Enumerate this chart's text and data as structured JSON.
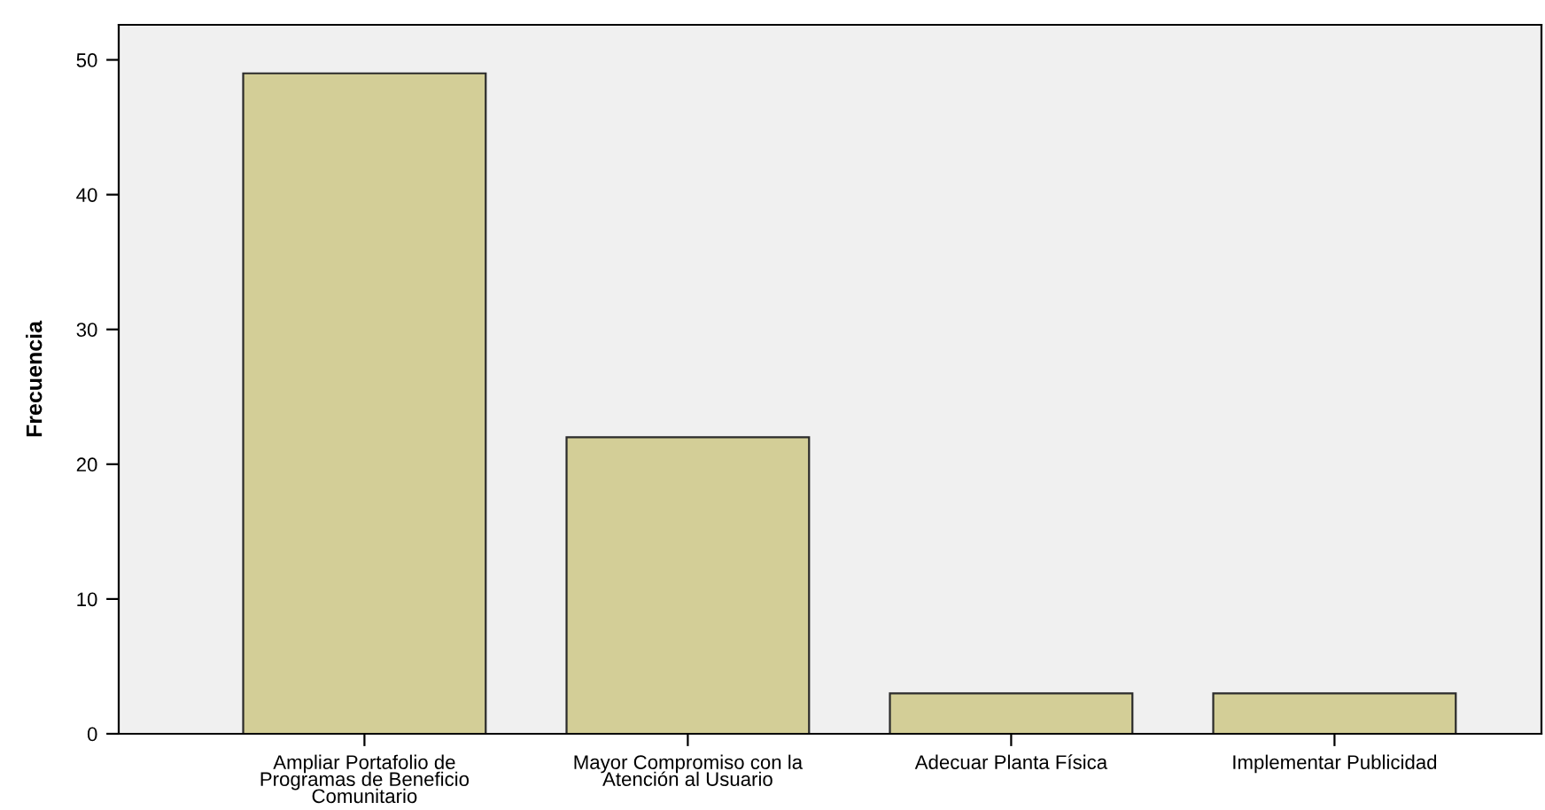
{
  "chart_data": {
    "type": "bar",
    "ylabel": "Frecuencia",
    "categories": [
      "Ampliar Portafolio de\nProgramas de Beneficio\nComunitario",
      "Mayor Compromiso con la\nAtención al Usuario",
      "Adecuar Planta Física",
      "Implementar Publicidad"
    ],
    "values": [
      49,
      22,
      3,
      3
    ],
    "color": "#d3ce97",
    "ylim": [
      0,
      52.6
    ],
    "yticks": [
      0,
      10,
      20,
      30,
      40,
      50
    ],
    "grid": false
  }
}
